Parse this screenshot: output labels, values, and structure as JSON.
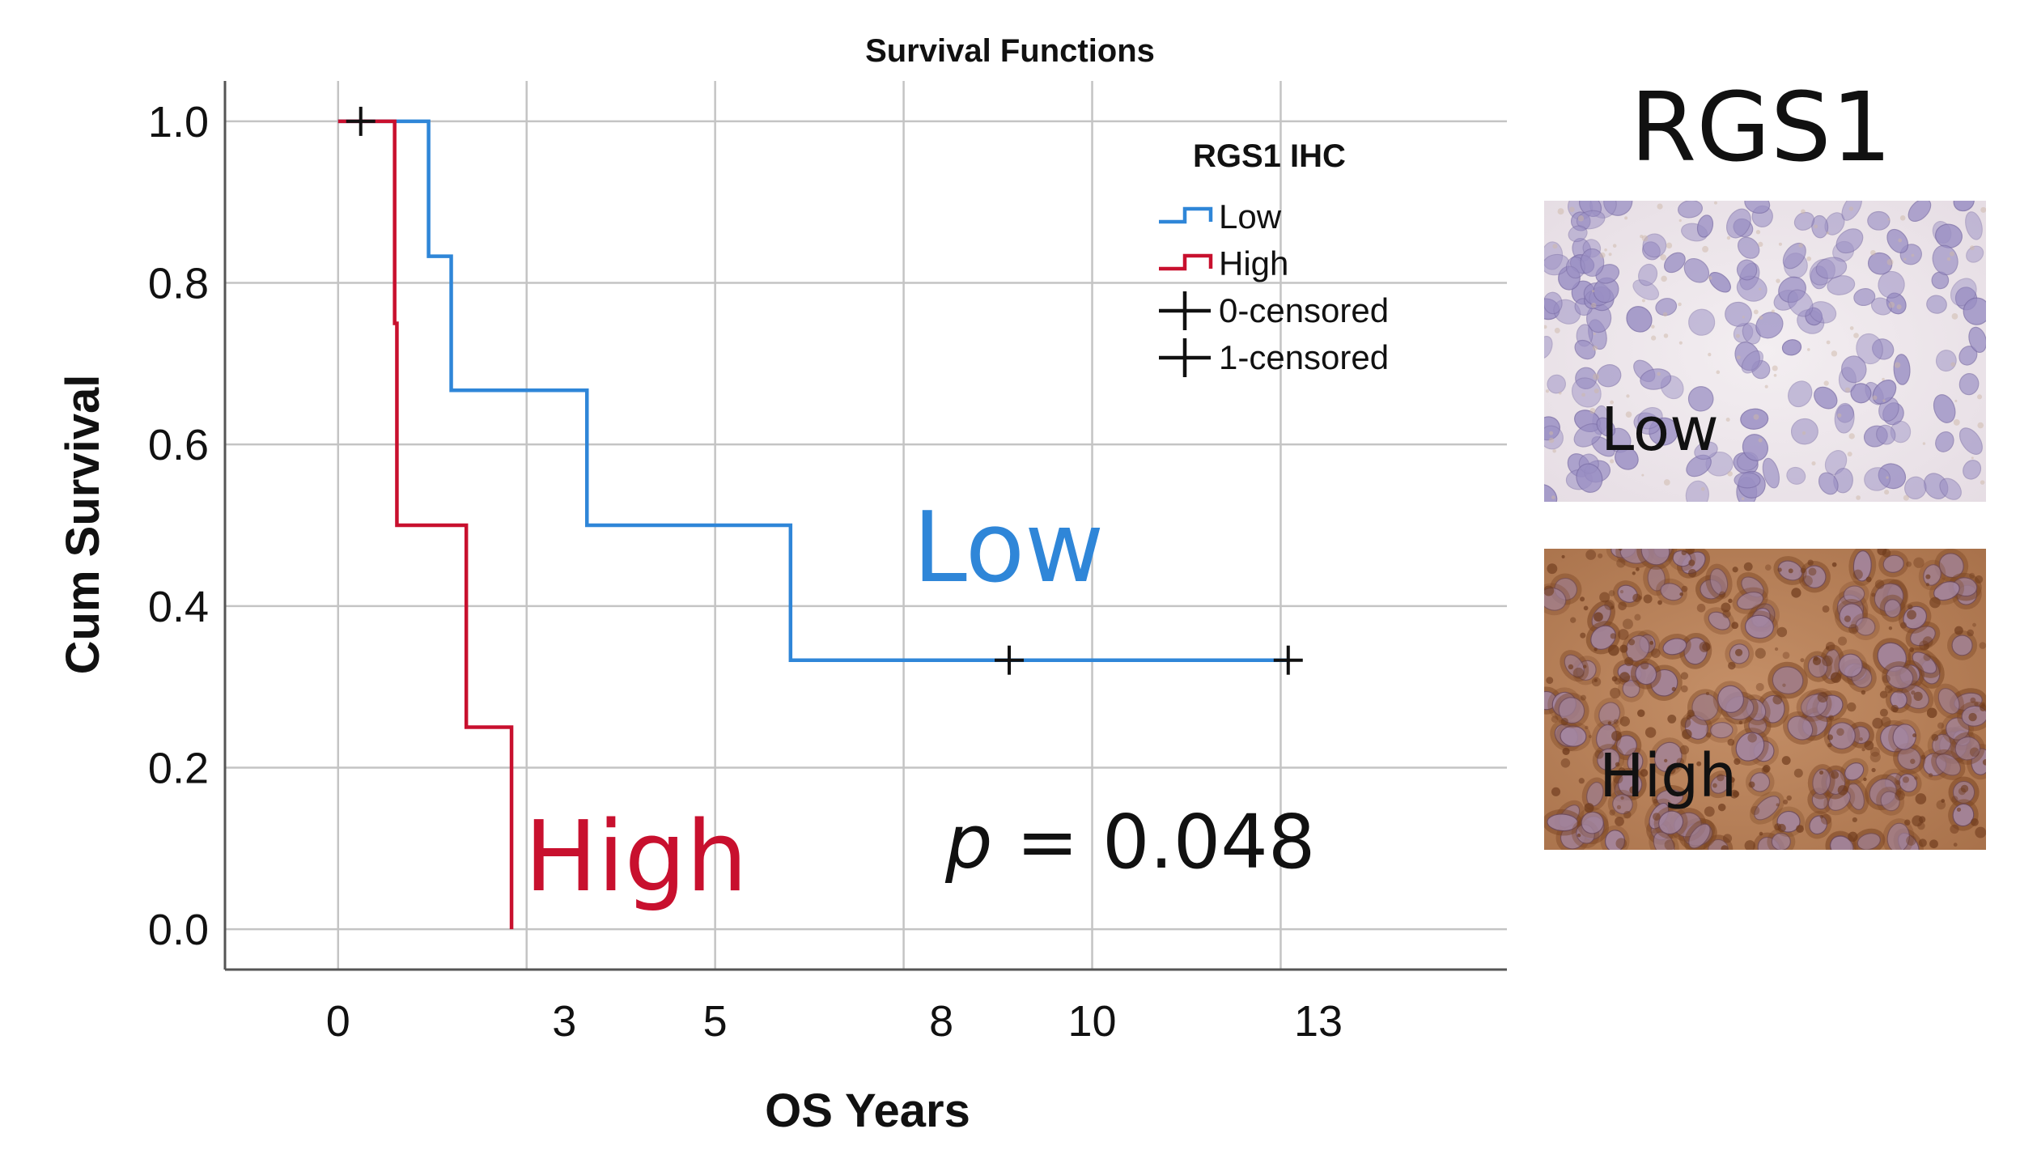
{
  "chart_data": {
    "type": "line",
    "step": true,
    "title": "Survival Functions",
    "xlabel": "OS Years",
    "ylabel": "Cum Survival",
    "xlim": [
      -1.5,
      15.5
    ],
    "ylim": [
      -0.05,
      1.05
    ],
    "x_ticks": [
      0,
      3,
      5,
      8,
      10,
      13
    ],
    "x_tick_labels": [
      "0",
      "3",
      "5",
      "8",
      "10",
      "13"
    ],
    "y_ticks": [
      0.0,
      0.2,
      0.4,
      0.6,
      0.8,
      1.0
    ],
    "y_tick_labels": [
      "0.0",
      "0.2",
      "0.4",
      "0.6",
      "0.8",
      "1.0"
    ],
    "x_grid": [
      0,
      2.5,
      5,
      7.5,
      10,
      12.5
    ],
    "grid": true,
    "legend": {
      "title": "RGS1 IHC",
      "position": "top-right",
      "items": [
        {
          "label": "Low",
          "kind": "step",
          "color": "#2f86d8"
        },
        {
          "label": "High",
          "kind": "step",
          "color": "#c8102e"
        },
        {
          "label": "0-censored",
          "kind": "censor",
          "color": "#111111"
        },
        {
          "label": "1-censored",
          "kind": "censor",
          "color": "#111111"
        }
      ]
    },
    "series": [
      {
        "name": "Low",
        "color": "#2f86d8",
        "steps": [
          [
            0,
            1.0
          ],
          [
            1.2,
            0.833
          ],
          [
            1.5,
            0.667
          ],
          [
            3.3,
            0.5
          ],
          [
            6.0,
            0.333
          ],
          [
            12.6,
            0.333
          ]
        ],
        "censored": [
          [
            8.9,
            0.333
          ],
          [
            12.6,
            0.333
          ]
        ]
      },
      {
        "name": "High",
        "color": "#c8102e",
        "steps": [
          [
            0,
            1.0
          ],
          [
            0.75,
            0.75
          ],
          [
            0.78,
            0.5
          ],
          [
            1.7,
            0.25
          ],
          [
            2.3,
            0.0
          ]
        ],
        "censored": [
          [
            0.3,
            1.0
          ]
        ]
      }
    ],
    "annotations": [
      {
        "text": "Low",
        "color": "#2f86d8"
      },
      {
        "text": "High",
        "color": "#c8102e"
      },
      {
        "p_symbol": "p",
        "text": " = 0.048",
        "color": "#111111"
      }
    ]
  },
  "side_panel": {
    "title": "RGS1",
    "images": [
      {
        "label": "Low",
        "stain": "low-stain-micrograph",
        "base_color": "#ece4e8",
        "nuclei_color": "#9a8fc4"
      },
      {
        "label": "High",
        "stain": "high-stain-micrograph",
        "base_color": "#b8845c",
        "nuclei_color": "#a68aa8"
      }
    ]
  }
}
